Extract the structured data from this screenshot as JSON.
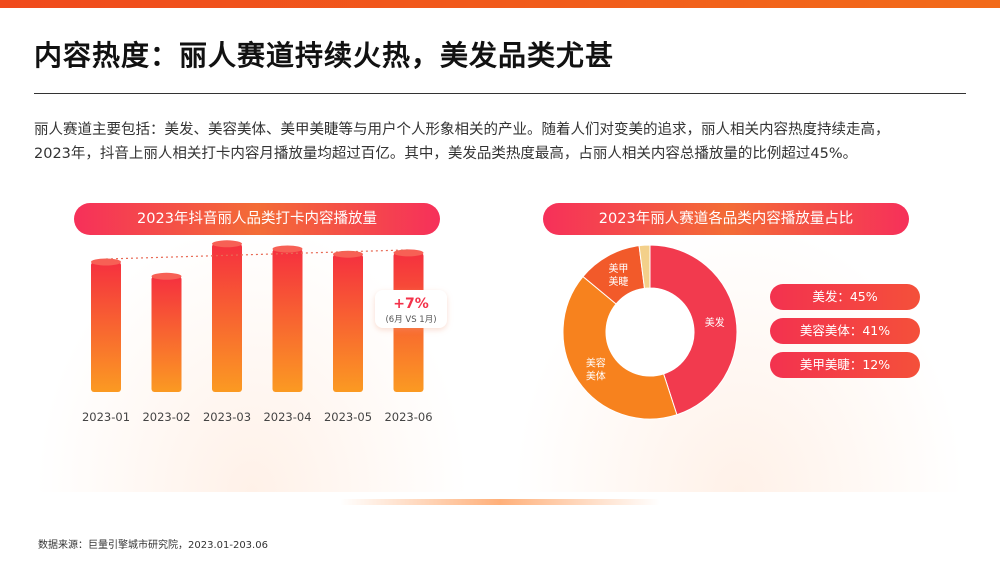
{
  "page": {
    "title": "内容热度：丽人赛道持续火热，美发品类尤甚",
    "intro_line1": "丽人赛道主要包括：美发、美容美体、美甲美睫等与用户个人形象相关的产业。随着人们对变美的追求，丽人相关内容热度持续走高，",
    "intro_line2": "2023年，抖音上丽人相关打卡内容月播放量均超过百亿。其中，美发品类热度最高，占丽人相关内容总播放量的比例超过45%。",
    "source": "数据来源：巨量引擎城市研究院，2023.01-203.06"
  },
  "colors": {
    "accent_red": "#f23a4e",
    "accent_orange": "#f7821e",
    "bar_top": "#f5303f",
    "bar_bottom": "#fb9a22",
    "pink": "#f3325a"
  },
  "chart_data": [
    {
      "type": "bar",
      "title": "2023年抖音丽人品类打卡内容播放量",
      "categories": [
        "2023-01",
        "2023-02",
        "2023-03",
        "2023-04",
        "2023-05",
        "2023-06"
      ],
      "values": [
        100,
        89,
        114,
        110,
        106,
        107
      ],
      "ylim": [
        0,
        120
      ],
      "trend_line": true,
      "annotation": {
        "value": "+7%",
        "note": "(6月 VS 1月)"
      }
    },
    {
      "type": "pie",
      "title": "2023年丽人赛道各品类内容播放量占比",
      "slices": [
        {
          "label": "美发",
          "value": 45,
          "legend": "美发：45%",
          "color": "#f23a4e"
        },
        {
          "label": "美容美体",
          "value": 41,
          "legend": "美容美体：41%",
          "color": "#f7821e"
        },
        {
          "label": "美甲美睫",
          "value": 12,
          "legend": "美甲美睫：12%",
          "color": "#f25a2a"
        },
        {
          "label": "",
          "value": 2,
          "legend": "",
          "color": "#f3d08a"
        }
      ]
    }
  ]
}
